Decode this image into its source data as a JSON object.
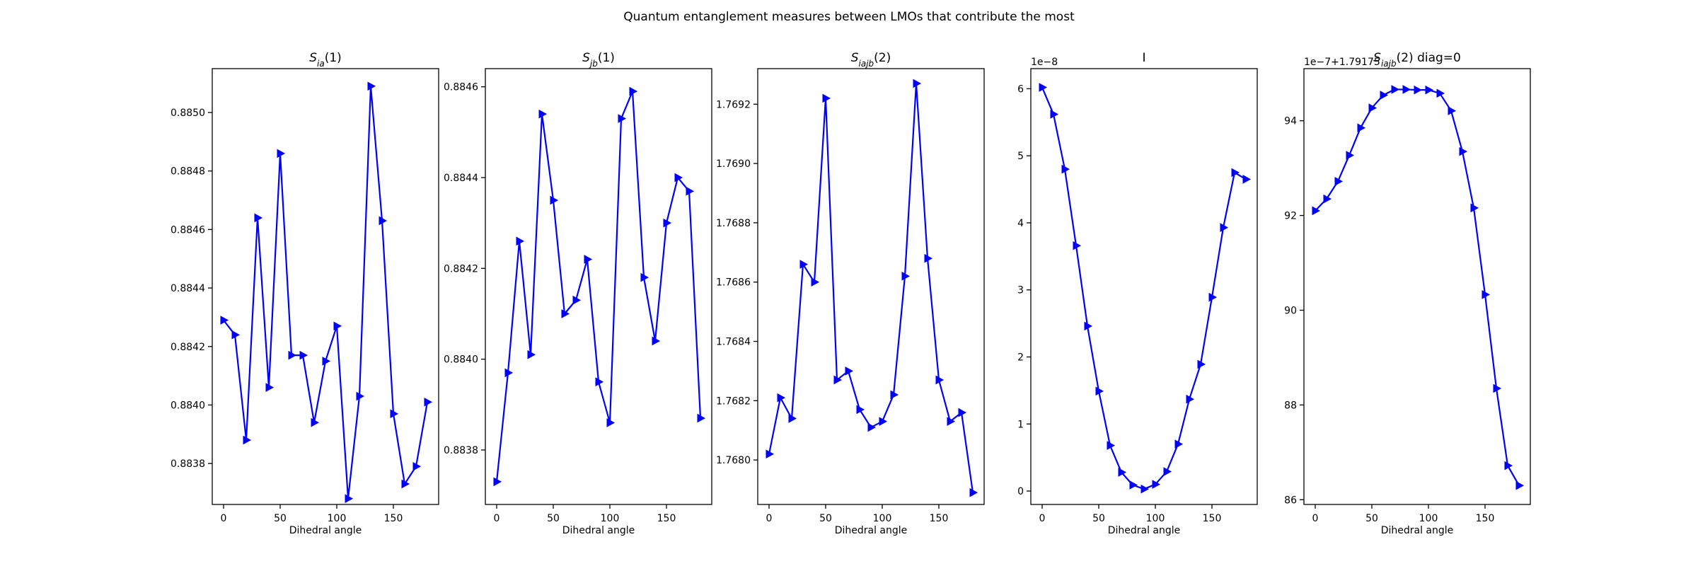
{
  "figure": {
    "suptitle": "Quantum entanglement measures between LMOs that contribute the most"
  },
  "chart_data": [
    {
      "type": "line",
      "title": "S_ia(1)",
      "title_parts": [
        {
          "text": "S"
        },
        {
          "text": "ia",
          "sub": true
        },
        {
          "text": "(1)"
        }
      ],
      "xlabel": "Dihedral angle",
      "ylabel": "",
      "offset_text": "",
      "xlim": [
        -10,
        190
      ],
      "ylim": [
        0.88366,
        0.88515
      ],
      "xticks": [
        0,
        50,
        100,
        150
      ],
      "xtick_labels": [
        "0",
        "50",
        "100",
        "150"
      ],
      "yticks": [
        0.8838,
        0.884,
        0.8842,
        0.8844,
        0.8846,
        0.8848,
        0.885
      ],
      "ytick_labels": [
        "0.8838",
        "0.8840",
        "0.8842",
        "0.8844",
        "0.8846",
        "0.8848",
        "0.8850"
      ],
      "color": "#0000ff",
      "marker": "triangle-right",
      "grid": false,
      "x": [
        0,
        10,
        20,
        30,
        40,
        50,
        60,
        70,
        80,
        90,
        100,
        110,
        120,
        130,
        140,
        150,
        160,
        170,
        180
      ],
      "y": [
        0.88429,
        0.88424,
        0.88388,
        0.88464,
        0.88406,
        0.88486,
        0.88417,
        0.88417,
        0.88394,
        0.88415,
        0.88427,
        0.88368,
        0.88403,
        0.88509,
        0.88463,
        0.88397,
        0.88373,
        0.88379,
        0.88401
      ]
    },
    {
      "type": "line",
      "title": "S_jb(1)",
      "title_parts": [
        {
          "text": "S"
        },
        {
          "text": "jb",
          "sub": true
        },
        {
          "text": "(1)"
        }
      ],
      "xlabel": "Dihedral angle",
      "ylabel": "",
      "offset_text": "",
      "xlim": [
        -10,
        190
      ],
      "ylim": [
        0.88368,
        0.88464
      ],
      "xticks": [
        0,
        50,
        100,
        150
      ],
      "xtick_labels": [
        "0",
        "50",
        "100",
        "150"
      ],
      "yticks": [
        0.8838,
        0.884,
        0.8842,
        0.8844,
        0.8846
      ],
      "ytick_labels": [
        "0.8838",
        "0.8840",
        "0.8842",
        "0.8844",
        "0.8846"
      ],
      "color": "#0000ff",
      "marker": "triangle-right",
      "grid": false,
      "x": [
        0,
        10,
        20,
        30,
        40,
        50,
        60,
        70,
        80,
        90,
        100,
        110,
        120,
        130,
        140,
        150,
        160,
        170,
        180
      ],
      "y": [
        0.88373,
        0.88397,
        0.88426,
        0.88401,
        0.88454,
        0.88435,
        0.8841,
        0.88413,
        0.88422,
        0.88395,
        0.88386,
        0.88453,
        0.88459,
        0.88418,
        0.88404,
        0.8843,
        0.8844,
        0.88437,
        0.88387
      ]
    },
    {
      "type": "line",
      "title": "S_iajb(2)",
      "title_parts": [
        {
          "text": "S"
        },
        {
          "text": "iajb",
          "sub": true
        },
        {
          "text": "(2)"
        }
      ],
      "xlabel": "Dihedral angle",
      "ylabel": "",
      "offset_text": "",
      "xlim": [
        -10,
        190
      ],
      "ylim": [
        1.76785,
        1.76932
      ],
      "xticks": [
        0,
        50,
        100,
        150
      ],
      "xtick_labels": [
        "0",
        "50",
        "100",
        "150"
      ],
      "yticks": [
        1.768,
        1.7682,
        1.7684,
        1.7686,
        1.7688,
        1.769,
        1.7692
      ],
      "ytick_labels": [
        "1.7680",
        "1.7682",
        "1.7684",
        "1.7686",
        "1.7688",
        "1.7690",
        "1.7692"
      ],
      "color": "#0000ff",
      "marker": "triangle-right",
      "grid": false,
      "x": [
        0,
        10,
        20,
        30,
        40,
        50,
        60,
        70,
        80,
        90,
        100,
        110,
        120,
        130,
        140,
        150,
        160,
        170,
        180
      ],
      "y": [
        1.76802,
        1.76821,
        1.76814,
        1.76866,
        1.7686,
        1.76922,
        1.76827,
        1.7683,
        1.76817,
        1.76811,
        1.76813,
        1.76822,
        1.76862,
        1.76927,
        1.76868,
        1.76827,
        1.76813,
        1.76816,
        1.76789
      ]
    },
    {
      "type": "line",
      "title": "I",
      "title_parts": [
        {
          "text": "I"
        }
      ],
      "xlabel": "Dihedral angle",
      "ylabel": "",
      "offset_text": "1e−8",
      "xlim": [
        -10,
        190
      ],
      "ylim": [
        -0.2,
        6.3
      ],
      "xticks": [
        0,
        50,
        100,
        150
      ],
      "xtick_labels": [
        "0",
        "50",
        "100",
        "150"
      ],
      "yticks": [
        0,
        1,
        2,
        3,
        4,
        5,
        6
      ],
      "ytick_labels": [
        "0",
        "1",
        "2",
        "3",
        "4",
        "5",
        "6"
      ],
      "color": "#0000ff",
      "marker": "triangle-right",
      "grid": false,
      "x": [
        0,
        10,
        20,
        30,
        40,
        50,
        60,
        70,
        80,
        90,
        100,
        110,
        120,
        130,
        140,
        150,
        160,
        170,
        180
      ],
      "y": [
        6.02,
        5.62,
        4.8,
        3.66,
        2.46,
        1.49,
        0.68,
        0.28,
        0.09,
        0.03,
        0.1,
        0.29,
        0.7,
        1.37,
        1.89,
        2.89,
        3.93,
        4.75,
        4.65
      ]
    },
    {
      "type": "line",
      "title": "S_iajb(2) diag=0",
      "title_parts": [
        {
          "text": "S"
        },
        {
          "text": "iajb",
          "sub": true
        },
        {
          "text": "(2) diag=0"
        }
      ],
      "xlabel": "Dihedral angle",
      "ylabel": "",
      "offset_text": "1e−7+1.79175",
      "xlim": [
        -10,
        190
      ],
      "ylim": [
        85.9,
        95.1
      ],
      "xticks": [
        0,
        50,
        100,
        150
      ],
      "xtick_labels": [
        "0",
        "50",
        "100",
        "150"
      ],
      "yticks": [
        86,
        88,
        90,
        92,
        94
      ],
      "ytick_labels": [
        "86",
        "88",
        "90",
        "92",
        "94"
      ],
      "color": "#0000ff",
      "marker": "triangle-right",
      "grid": false,
      "x": [
        0,
        10,
        20,
        30,
        40,
        50,
        60,
        70,
        80,
        90,
        100,
        110,
        120,
        130,
        140,
        150,
        160,
        170,
        180
      ],
      "y": [
        92.1,
        92.35,
        92.72,
        93.27,
        93.85,
        94.27,
        94.54,
        94.66,
        94.66,
        94.65,
        94.65,
        94.58,
        94.21,
        93.35,
        92.16,
        90.33,
        88.35,
        86.72,
        86.3
      ]
    }
  ]
}
